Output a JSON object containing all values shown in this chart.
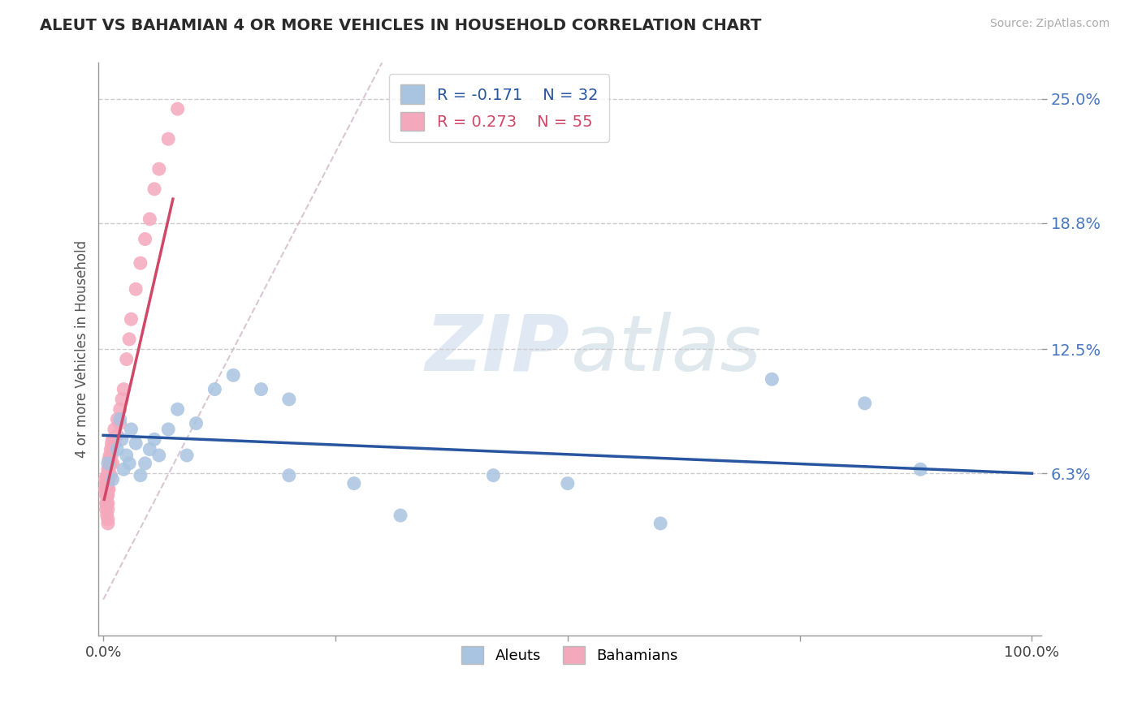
{
  "title": "ALEUT VS BAHAMIAN 4 OR MORE VEHICLES IN HOUSEHOLD CORRELATION CHART",
  "source_text": "Source: ZipAtlas.com",
  "ylabel": "4 or more Vehicles in Household",
  "legend_r_aleut": "-0.171",
  "legend_n_aleut": "32",
  "legend_r_bahamian": "0.273",
  "legend_n_bahamian": "55",
  "ytick_labels": [
    "6.3%",
    "12.5%",
    "18.8%",
    "25.0%"
  ],
  "ytick_values": [
    0.063,
    0.125,
    0.188,
    0.25
  ],
  "xlim": [
    -0.005,
    1.01
  ],
  "ylim": [
    -0.018,
    0.268
  ],
  "aleut_color": "#a8c4e0",
  "bahamian_color": "#f4a8bc",
  "aleut_line_color": "#2855a0",
  "bahamian_line_color": "#d04868",
  "diagonal_color": "#d0b8c8",
  "watermark_zip": "ZIP",
  "watermark_atlas": "atlas",
  "aleut_x": [
    0.005,
    0.01,
    0.015,
    0.018,
    0.02,
    0.022,
    0.025,
    0.028,
    0.03,
    0.035,
    0.04,
    0.045,
    0.05,
    0.055,
    0.06,
    0.07,
    0.08,
    0.09,
    0.1,
    0.12,
    0.14,
    0.17,
    0.2,
    0.2,
    0.27,
    0.32,
    0.42,
    0.5,
    0.6,
    0.72,
    0.82,
    0.88
  ],
  "aleut_y": [
    0.068,
    0.06,
    0.075,
    0.09,
    0.08,
    0.065,
    0.072,
    0.068,
    0.085,
    0.078,
    0.062,
    0.068,
    0.075,
    0.08,
    0.072,
    0.085,
    0.095,
    0.072,
    0.088,
    0.105,
    0.112,
    0.105,
    0.1,
    0.062,
    0.058,
    0.042,
    0.062,
    0.058,
    0.038,
    0.11,
    0.098,
    0.065
  ],
  "bahamian_x": [
    0.002,
    0.002,
    0.003,
    0.003,
    0.003,
    0.003,
    0.003,
    0.004,
    0.004,
    0.004,
    0.004,
    0.004,
    0.005,
    0.005,
    0.005,
    0.005,
    0.005,
    0.005,
    0.005,
    0.005,
    0.005,
    0.006,
    0.006,
    0.006,
    0.006,
    0.007,
    0.007,
    0.007,
    0.008,
    0.008,
    0.008,
    0.009,
    0.009,
    0.01,
    0.01,
    0.01,
    0.012,
    0.012,
    0.015,
    0.015,
    0.018,
    0.018,
    0.02,
    0.022,
    0.025,
    0.028,
    0.03,
    0.035,
    0.04,
    0.045,
    0.05,
    0.055,
    0.06,
    0.07,
    0.08
  ],
  "bahamian_y": [
    0.06,
    0.055,
    0.058,
    0.055,
    0.052,
    0.048,
    0.045,
    0.062,
    0.058,
    0.052,
    0.048,
    0.042,
    0.065,
    0.06,
    0.058,
    0.055,
    0.052,
    0.048,
    0.045,
    0.04,
    0.038,
    0.07,
    0.065,
    0.06,
    0.055,
    0.072,
    0.068,
    0.062,
    0.075,
    0.068,
    0.062,
    0.078,
    0.072,
    0.08,
    0.075,
    0.068,
    0.085,
    0.078,
    0.09,
    0.082,
    0.095,
    0.088,
    0.1,
    0.105,
    0.12,
    0.13,
    0.14,
    0.155,
    0.168,
    0.18,
    0.19,
    0.205,
    0.215,
    0.23,
    0.245
  ]
}
